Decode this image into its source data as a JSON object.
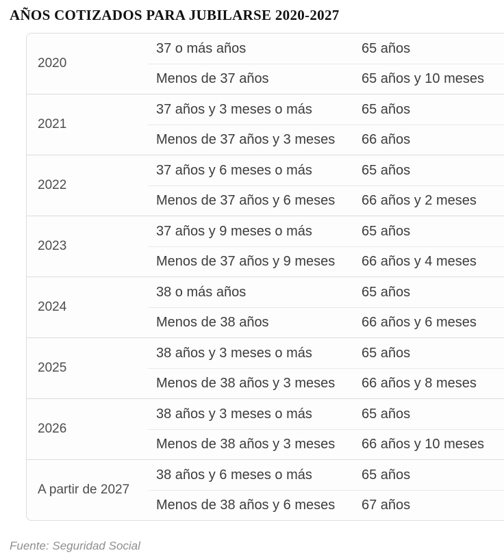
{
  "chart_data": {
    "type": "table",
    "title": "AÑOS COTIZADOS PARA JUBILARSE 2020-2027",
    "source_note": "Fuente: Seguridad Social",
    "groups": [
      {
        "year": "2020",
        "rows": [
          {
            "requirement": "37 o más años",
            "retirement_age": "65 años"
          },
          {
            "requirement": "Menos de 37 años",
            "retirement_age": "65 años y 10 meses"
          }
        ]
      },
      {
        "year": "2021",
        "rows": [
          {
            "requirement": "37 años y 3 meses o más",
            "retirement_age": "65 años"
          },
          {
            "requirement": "Menos de 37 años y 3 meses",
            "retirement_age": "66 años"
          }
        ]
      },
      {
        "year": "2022",
        "rows": [
          {
            "requirement": "37 años y 6 meses o más",
            "retirement_age": "65 años"
          },
          {
            "requirement": "Menos de 37 años y 6 meses",
            "retirement_age": "66 años y 2 meses"
          }
        ]
      },
      {
        "year": "2023",
        "rows": [
          {
            "requirement": "37 años y 9 meses o más",
            "retirement_age": "65 años"
          },
          {
            "requirement": "Menos de 37 años y 9 meses",
            "retirement_age": "66 años y 4 meses"
          }
        ]
      },
      {
        "year": "2024",
        "rows": [
          {
            "requirement": "38 o más años",
            "retirement_age": "65 años"
          },
          {
            "requirement": "Menos de 38 años",
            "retirement_age": "66 años y 6 meses"
          }
        ]
      },
      {
        "year": "2025",
        "rows": [
          {
            "requirement": "38 años y 3 meses o más",
            "retirement_age": "65 años"
          },
          {
            "requirement": "Menos de 38 años y 3 meses",
            "retirement_age": "66 años y 8 meses"
          }
        ]
      },
      {
        "year": "2026",
        "rows": [
          {
            "requirement": "38 años y 3 meses o más",
            "retirement_age": "65 años"
          },
          {
            "requirement": "Menos de 38 años y 3 meses",
            "retirement_age": "66 años y 10 meses"
          }
        ]
      },
      {
        "year": "A partir de 2027",
        "rows": [
          {
            "requirement": "38 años y 6 meses o más",
            "retirement_age": "65 años"
          },
          {
            "requirement": "Menos de 38 años y 6 meses",
            "retirement_age": "67 años"
          }
        ]
      }
    ]
  },
  "colors": {
    "background": "#ffffff",
    "table_background": "#fdfdfd",
    "outer_border": "#dddddd",
    "group_divider": "#dcdcdc",
    "row_divider": "#e9e9e9",
    "title_text": "#101010",
    "year_text": "#4d4d4d",
    "cell_text": "#3c3c3c",
    "source_text": "#8f8f8f"
  }
}
